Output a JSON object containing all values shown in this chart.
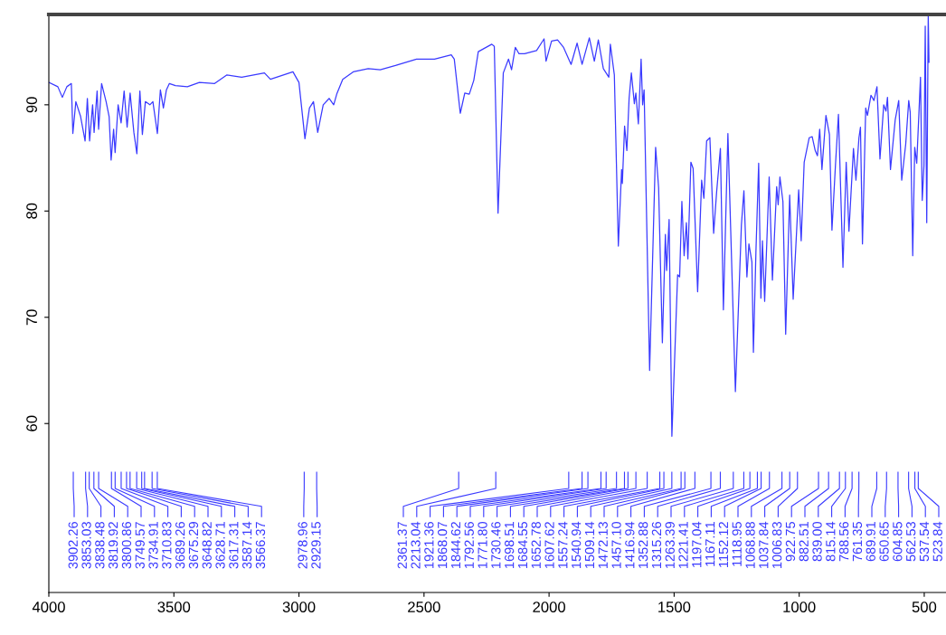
{
  "chart_data": {
    "type": "line",
    "x": [
      4000,
      3964,
      3946,
      3928,
      3910,
      3904,
      3892,
      3873,
      3855,
      3846,
      3837,
      3825,
      3819,
      3807,
      3801,
      3789,
      3771,
      3759,
      3751,
      3741,
      3735,
      3723,
      3711,
      3699,
      3687,
      3675,
      3660,
      3648,
      3636,
      3626,
      3614,
      3596,
      3584,
      3566,
      3554,
      3542,
      3530,
      3518,
      3494,
      3446,
      3398,
      3337,
      3289,
      3229,
      3138,
      3114,
      3024,
      3000,
      2976,
      2958,
      2942,
      2925,
      2903,
      2879,
      2861,
      2849,
      2825,
      2783,
      2723,
      2675,
      2614,
      2530,
      2458,
      2391,
      2379,
      2355,
      2337,
      2319,
      2301,
      2283,
      2229,
      2219,
      2204,
      2183,
      2162,
      2150,
      2135,
      2120,
      2098,
      2050,
      2020,
      2012,
      1990,
      1966,
      1942,
      1912,
      1888,
      1868,
      1839,
      1819,
      1803,
      1783,
      1761,
      1755,
      1739,
      1723,
      1710,
      1707,
      1698,
      1689,
      1680,
      1671,
      1659,
      1653,
      1643,
      1632,
      1626,
      1620,
      1598,
      1574,
      1562,
      1547,
      1535,
      1530,
      1520,
      1509,
      1486,
      1478,
      1469,
      1460,
      1451,
      1445,
      1433,
      1424,
      1406,
      1390,
      1381,
      1370,
      1357,
      1342,
      1330,
      1315,
      1303,
      1285,
      1255,
      1231,
      1221,
      1209,
      1201,
      1189,
      1183,
      1173,
      1162,
      1153,
      1147,
      1138,
      1120,
      1107,
      1090,
      1084,
      1077,
      1065,
      1054,
      1038,
      1024,
      1002,
      992,
      980,
      960,
      948,
      936,
      927,
      918,
      909,
      893,
      879,
      869,
      855,
      843,
      825,
      812,
      801,
      783,
      773,
      761,
      755,
      747,
      734,
      727,
      713,
      701,
      689,
      677,
      662,
      653,
      647,
      635,
      616,
      602,
      590,
      574,
      562,
      556,
      546,
      538,
      530,
      515,
      508,
      501,
      496,
      490,
      484,
      481
    ],
    "series": [
      {
        "color": "#3a3aff",
        "values": [
          92.1,
          91.7,
          90.7,
          91.7,
          92.0,
          87.3,
          90.3,
          88.9,
          86.6,
          90.6,
          86.6,
          90.0,
          87.4,
          91.3,
          87.7,
          92.0,
          90.3,
          88.9,
          84.8,
          87.7,
          85.5,
          90.0,
          88.3,
          91.3,
          87.9,
          91.1,
          87.4,
          85.4,
          91.3,
          87.2,
          90.3,
          90.0,
          90.3,
          87.3,
          91.4,
          89.7,
          91.4,
          92.0,
          91.8,
          91.7,
          92.1,
          92.0,
          92.8,
          92.6,
          93.0,
          92.4,
          93.1,
          92.1,
          86.8,
          89.7,
          90.3,
          87.4,
          90.0,
          90.6,
          90.0,
          91.0,
          92.4,
          93.1,
          93.4,
          93.3,
          93.7,
          94.3,
          94.3,
          94.7,
          94.3,
          89.2,
          91.1,
          91.0,
          92.3,
          95.0,
          95.7,
          95.5,
          79.8,
          93.0,
          94.3,
          93.3,
          95.4,
          94.8,
          94.8,
          95.1,
          96.2,
          94.1,
          96.0,
          96.1,
          95.4,
          93.8,
          95.8,
          93.8,
          96.3,
          94.1,
          96.1,
          93.4,
          92.6,
          95.7,
          92.8,
          76.7,
          83.9,
          82.6,
          88.0,
          85.7,
          90.6,
          93.0,
          90.1,
          91.1,
          88.2,
          94.3,
          90.0,
          91.4,
          65.0,
          86.0,
          82.2,
          67.6,
          77.8,
          74.4,
          79.2,
          58.8,
          74.0,
          73.8,
          80.9,
          75.8,
          78.9,
          75.5,
          84.6,
          84.0,
          72.4,
          82.9,
          81.2,
          86.6,
          86.9,
          77.9,
          81.8,
          85.9,
          70.7,
          87.3,
          63.0,
          78.7,
          81.9,
          73.8,
          76.9,
          75.2,
          66.7,
          76.1,
          84.5,
          71.8,
          77.2,
          71.5,
          83.2,
          73.5,
          82.3,
          80.6,
          83.2,
          80.9,
          68.4,
          81.5,
          71.7,
          82.0,
          77.2,
          84.6,
          86.9,
          87.0,
          85.7,
          85.2,
          87.7,
          83.9,
          89.0,
          87.2,
          78.2,
          84.3,
          89.1,
          74.7,
          84.6,
          78.1,
          85.9,
          82.9,
          86.9,
          87.9,
          76.9,
          89.7,
          89.0,
          90.9,
          90.4,
          91.7,
          84.9,
          90.0,
          89.4,
          90.7,
          83.9,
          88.6,
          90.4,
          82.9,
          86.3,
          90.4,
          89.3,
          75.8,
          86.0,
          84.5,
          92.6,
          81.0,
          84.3,
          97.4,
          78.9,
          98.4,
          94.0
        ]
      }
    ],
    "xlim": [
      4000,
      413
    ],
    "ylim": [
      44.1,
      98.5
    ],
    "xticks": [
      4000,
      3500,
      3000,
      2500,
      2000,
      1500,
      1000,
      500
    ],
    "yticks": [
      60,
      70,
      80,
      90
    ],
    "annotations": [
      {
        "text": "3902.26",
        "x": 3902.26
      },
      {
        "text": "3853.03",
        "x": 3853.03
      },
      {
        "text": "3838.48",
        "x": 3838.48
      },
      {
        "text": "3819.92",
        "x": 3819.92
      },
      {
        "text": "3800.86",
        "x": 3800.86
      },
      {
        "text": "3749.57",
        "x": 3749.57
      },
      {
        "text": "3734.91",
        "x": 3734.91
      },
      {
        "text": "3710.83",
        "x": 3710.83
      },
      {
        "text": "3689.26",
        "x": 3689.26
      },
      {
        "text": "3675.29",
        "x": 3675.29
      },
      {
        "text": "3648.82",
        "x": 3648.82
      },
      {
        "text": "3628.71",
        "x": 3628.71
      },
      {
        "text": "3617.31",
        "x": 3617.31
      },
      {
        "text": "3587.14",
        "x": 3587.14
      },
      {
        "text": "3566.37",
        "x": 3566.37
      },
      {
        "text": "2978.96",
        "x": 2978.96
      },
      {
        "text": "2929.15",
        "x": 2929.15
      },
      {
        "text": "2361.37",
        "x": 2361.37
      },
      {
        "text": "2213.04",
        "x": 2213.04
      },
      {
        "text": "1921.36",
        "x": 1921.36
      },
      {
        "text": "1868.07",
        "x": 1868.07
      },
      {
        "text": "1844.62",
        "x": 1844.62
      },
      {
        "text": "1792.56",
        "x": 1792.56
      },
      {
        "text": "1771.80",
        "x": 1771.8
      },
      {
        "text": "1730.46",
        "x": 1730.46
      },
      {
        "text": "1698.51",
        "x": 1698.51
      },
      {
        "text": "1684.55",
        "x": 1684.55
      },
      {
        "text": "1652.78",
        "x": 1652.78
      },
      {
        "text": "1607.62",
        "x": 1607.62
      },
      {
        "text": "1557.24",
        "x": 1557.24
      },
      {
        "text": "1540.94",
        "x": 1540.94
      },
      {
        "text": "1509.14",
        "x": 1509.14
      },
      {
        "text": "1472.13",
        "x": 1472.13
      },
      {
        "text": "1457.10",
        "x": 1457.1
      },
      {
        "text": "1416.94",
        "x": 1416.94
      },
      {
        "text": "1352.88",
        "x": 1352.88
      },
      {
        "text": "1315.26",
        "x": 1315.26
      },
      {
        "text": "1263.39",
        "x": 1263.39
      },
      {
        "text": "1221.41",
        "x": 1221.41
      },
      {
        "text": "1197.04",
        "x": 1197.04
      },
      {
        "text": "1167.11",
        "x": 1167.11
      },
      {
        "text": "1152.12",
        "x": 1152.12
      },
      {
        "text": "1118.95",
        "x": 1118.95
      },
      {
        "text": "1068.88",
        "x": 1068.88
      },
      {
        "text": "1037.84",
        "x": 1037.84
      },
      {
        "text": "1006.83",
        "x": 1006.83
      },
      {
        "text": "922.75",
        "x": 922.75
      },
      {
        "text": "882.51",
        "x": 882.51
      },
      {
        "text": "839.00",
        "x": 839.0
      },
      {
        "text": "815.14",
        "x": 815.14
      },
      {
        "text": "788.56",
        "x": 788.56
      },
      {
        "text": "761.35",
        "x": 761.35
      },
      {
        "text": "689.91",
        "x": 689.91
      },
      {
        "text": "650.65",
        "x": 650.65
      },
      {
        "text": "604.85",
        "x": 604.85
      },
      {
        "text": "562.53",
        "x": 562.53
      },
      {
        "text": "537.54",
        "x": 537.54
      },
      {
        "text": "523.84",
        "x": 523.84
      }
    ]
  }
}
